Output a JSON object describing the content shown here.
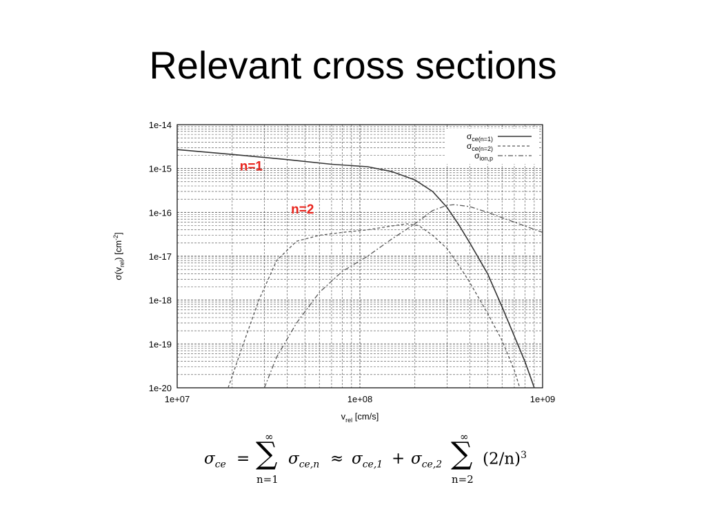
{
  "slide": {
    "title": "Relevant cross sections"
  },
  "chart_data": {
    "type": "line",
    "x_scale": "log",
    "y_scale": "log",
    "xlim": [
      10000000.0,
      1000000000.0
    ],
    "ylim": [
      1e-20,
      1e-14
    ],
    "x_ticks": [
      10000000.0,
      100000000.0,
      1000000000.0
    ],
    "x_tick_labels": [
      "1e+07",
      "1e+08",
      "1e+09"
    ],
    "y_ticks": [
      1e-14,
      1e-15,
      1e-16,
      1e-17,
      1e-18,
      1e-19,
      1e-20
    ],
    "y_tick_labels": [
      "1e-14",
      "1e-15",
      "1e-16",
      "1e-17",
      "1e-18",
      "1e-19",
      "1e-20"
    ],
    "xlabel": {
      "main": "v",
      "sub": "rel",
      "rest": " [cm/s]"
    },
    "ylabel": {
      "main": "σ(v",
      "sub": "rel",
      "rest": ") [cm",
      "sup": "-2",
      "end": "]"
    },
    "grid": true,
    "legend_position": "top-right",
    "series": [
      {
        "name": "σce(n=1)",
        "legend": {
          "main": "σ",
          "sub": "ce(n=1)"
        },
        "dash": "solid",
        "color": "#333333",
        "points": [
          [
            10000000.0,
            2.7e-15
          ],
          [
            20000000.0,
            2.1e-15
          ],
          [
            40000000.0,
            1.6e-15
          ],
          [
            70000000.0,
            1.25e-15
          ],
          [
            110000000.0,
            1.1e-15
          ],
          [
            150000000.0,
            8.5e-16
          ],
          [
            200000000.0,
            5.5e-16
          ],
          [
            250000000.0,
            3e-16
          ],
          [
            300000000.0,
            1.3e-16
          ],
          [
            350000000.0,
            5e-17
          ],
          [
            400000000.0,
            2e-17
          ],
          [
            500000000.0,
            4e-18
          ],
          [
            600000000.0,
            7e-19
          ],
          [
            700000000.0,
            1.5e-19
          ],
          [
            800000000.0,
            4e-20
          ],
          [
            870000000.0,
            1.5e-20
          ],
          [
            900000000.0,
            1e-20
          ]
        ]
      },
      {
        "name": "σce(n=2)",
        "legend": {
          "main": "σ",
          "sub": "ce(n=2)"
        },
        "dash": "4,3",
        "color": "#555555",
        "points": [
          [
            19000000.0,
            1e-20
          ],
          [
            23000000.0,
            1e-19
          ],
          [
            28000000.0,
            1e-18
          ],
          [
            35000000.0,
            8e-18
          ],
          [
            45000000.0,
            2.2e-17
          ],
          [
            60000000.0,
            3e-17
          ],
          [
            80000000.0,
            3.5e-17
          ],
          [
            110000000.0,
            4e-17
          ],
          [
            140000000.0,
            4.7e-17
          ],
          [
            180000000.0,
            5.5e-17
          ],
          [
            210000000.0,
            5e-17
          ],
          [
            250000000.0,
            3e-17
          ],
          [
            300000000.0,
            1.5e-17
          ],
          [
            350000000.0,
            6e-18
          ],
          [
            400000000.0,
            2.5e-18
          ],
          [
            500000000.0,
            5e-19
          ],
          [
            600000000.0,
            1.2e-19
          ],
          [
            700000000.0,
            2.5e-20
          ],
          [
            750000000.0,
            1e-20
          ]
        ]
      },
      {
        "name": "σion,p",
        "legend": {
          "main": "σ",
          "sub": "ion,p"
        },
        "dash": "7,3,2,3",
        "color": "#555555",
        "points": [
          [
            30000000.0,
            1e-20
          ],
          [
            35000000.0,
            5e-20
          ],
          [
            45000000.0,
            3e-19
          ],
          [
            60000000.0,
            1.5e-18
          ],
          [
            80000000.0,
            4.5e-18
          ],
          [
            110000000.0,
            1e-17
          ],
          [
            150000000.0,
            2.5e-17
          ],
          [
            200000000.0,
            5.5e-17
          ],
          [
            250000000.0,
            1.1e-16
          ],
          [
            300000000.0,
            1.45e-16
          ],
          [
            330000000.0,
            1.5e-16
          ],
          [
            400000000.0,
            1.35e-16
          ],
          [
            500000000.0,
            1e-16
          ],
          [
            700000000.0,
            6e-17
          ],
          [
            1000000000.0,
            3.5e-17
          ]
        ]
      }
    ],
    "annotations": [
      {
        "text": "n=1",
        "x": 22000000.0,
        "y": 9e-16,
        "color": "#e8231c"
      },
      {
        "text": "n=2",
        "x": 42000000.0,
        "y": 9.5e-17,
        "color": "#e8231c"
      }
    ]
  },
  "equation": {
    "lhs": "σ",
    "lhs_sub": "ce",
    "equals": "=",
    "sum_symbol": "∑",
    "inf": "∞",
    "lower1": "n=1",
    "term1": "σ",
    "term1_sub": "ce,n",
    "approx": "≈",
    "term2": "σ",
    "term2_sub": "ce,1",
    "plus": "+",
    "term3": "σ",
    "term3_sub": "ce,2",
    "lower2": "n=2",
    "factor": "(2/n)",
    "exponent": "3"
  }
}
